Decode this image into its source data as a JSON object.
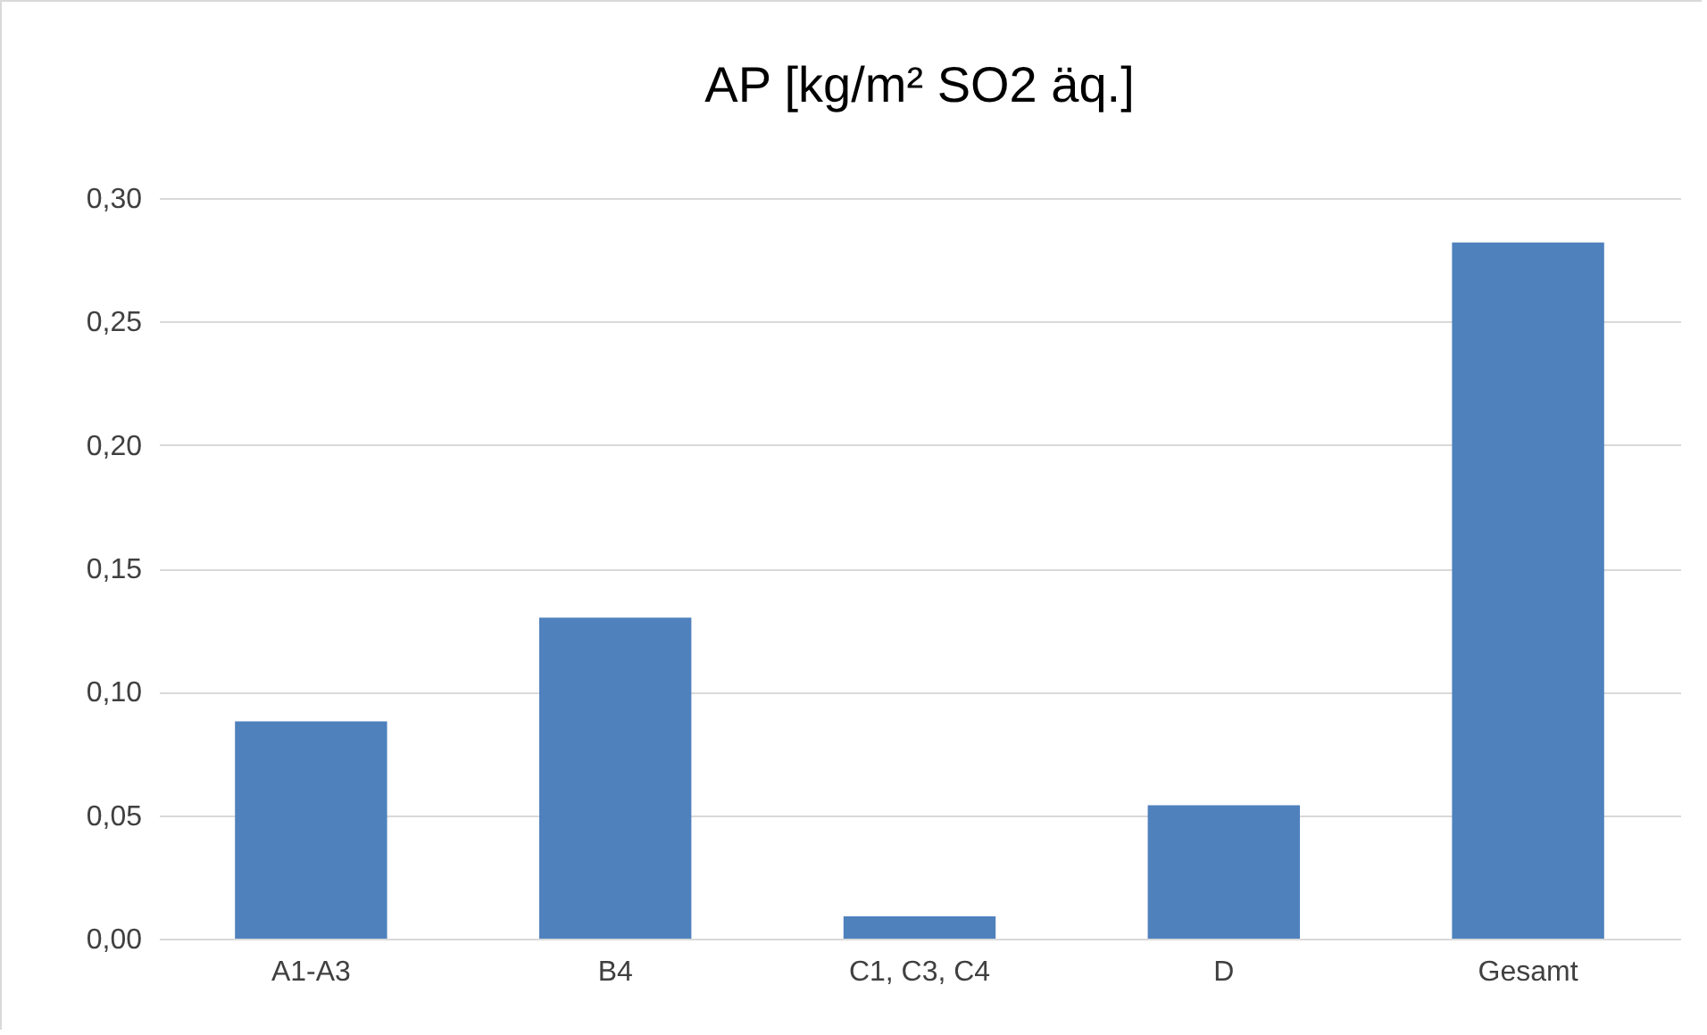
{
  "chart_data": {
    "type": "bar",
    "title": "AP [kg/m² SO2 äq.]",
    "categories": [
      "A1-A3",
      "B4",
      "C1, C3, C4",
      "D",
      "Gesamt"
    ],
    "values": [
      0.088,
      0.13,
      0.009,
      0.054,
      0.282
    ],
    "color": "#4f81bd",
    "ylim": [
      0,
      0.3
    ],
    "yticks": [
      {
        "value": 0,
        "label": "0,00"
      },
      {
        "value": 0.05,
        "label": "0,05"
      },
      {
        "value": 0.1,
        "label": "0,10"
      },
      {
        "value": 0.15,
        "label": "0,15"
      },
      {
        "value": 0.2,
        "label": "0,20"
      },
      {
        "value": 0.25,
        "label": "0,25"
      },
      {
        "value": 0.3,
        "label": "0,30"
      }
    ],
    "grid": "y"
  }
}
